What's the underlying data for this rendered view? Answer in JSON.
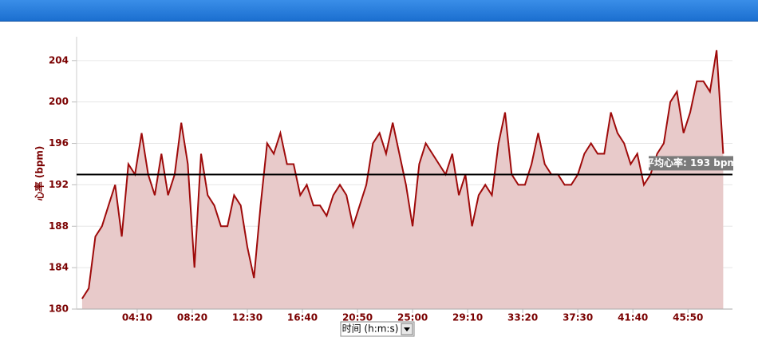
{
  "chart_data": {
    "type": "area",
    "y_label": "心率 (bpm)",
    "x_label": "时间 (h:m:s)",
    "color": "#9e0a0a",
    "fill": "#e8caca",
    "grid": true,
    "x": [
      0,
      30,
      60,
      90,
      120,
      150,
      180,
      210,
      240,
      270,
      300,
      330,
      360,
      390,
      420,
      450,
      480,
      510,
      540,
      570,
      600,
      630,
      660,
      690,
      720,
      750,
      780,
      810,
      840,
      870,
      900,
      930,
      960,
      990,
      1020,
      1050,
      1080,
      1110,
      1140,
      1170,
      1200,
      1230,
      1260,
      1290,
      1320,
      1350,
      1380,
      1410,
      1440,
      1470,
      1500,
      1530,
      1560,
      1590,
      1620,
      1650,
      1680,
      1710,
      1740,
      1770,
      1800,
      1830,
      1860,
      1890,
      1920,
      1950,
      1980,
      2010,
      2040,
      2070,
      2100,
      2130,
      2160,
      2190,
      2220,
      2250,
      2280,
      2310,
      2340,
      2370,
      2400,
      2430,
      2460,
      2490,
      2520,
      2550,
      2580,
      2610,
      2640,
      2670,
      2700,
      2730,
      2760,
      2790,
      2820,
      2850,
      2880,
      2910
    ],
    "values": [
      181,
      182,
      187,
      188,
      190,
      192,
      187,
      194,
      193,
      197,
      193,
      191,
      195,
      191,
      193,
      198,
      194,
      184,
      195,
      191,
      190,
      188,
      188,
      191,
      190,
      186,
      183,
      190,
      196,
      195,
      197,
      194,
      194,
      191,
      192,
      190,
      190,
      189,
      191,
      192,
      191,
      188,
      190,
      192,
      196,
      197,
      195,
      198,
      195,
      192,
      188,
      194,
      196,
      195,
      194,
      193,
      195,
      191,
      193,
      188,
      191,
      192,
      191,
      196,
      199,
      193,
      192,
      192,
      194,
      197,
      194,
      193,
      193,
      192,
      192,
      193,
      195,
      196,
      195,
      195,
      199,
      197,
      196,
      194,
      195,
      192,
      193,
      195,
      196,
      200,
      201,
      197,
      199,
      202,
      202,
      201,
      205,
      195
    ],
    "xlim": [
      -25,
      2952
    ],
    "ylim": [
      180,
      206.3
    ],
    "xticks": [
      {
        "value": 250,
        "label": "04:10"
      },
      {
        "value": 500,
        "label": "08:20"
      },
      {
        "value": 750,
        "label": "12:30"
      },
      {
        "value": 1000,
        "label": "16:40"
      },
      {
        "value": 1250,
        "label": "20:50"
      },
      {
        "value": 1500,
        "label": "25:00"
      },
      {
        "value": 1750,
        "label": "29:10"
      },
      {
        "value": 2000,
        "label": "33:20"
      },
      {
        "value": 2250,
        "label": "37:30"
      },
      {
        "value": 2500,
        "label": "41:40"
      },
      {
        "value": 2750,
        "label": "45:50"
      }
    ],
    "yticks": [
      180,
      184,
      188,
      192,
      196,
      200,
      204
    ],
    "average": {
      "value": 193,
      "label": "平均心率: 193 bpm"
    }
  }
}
